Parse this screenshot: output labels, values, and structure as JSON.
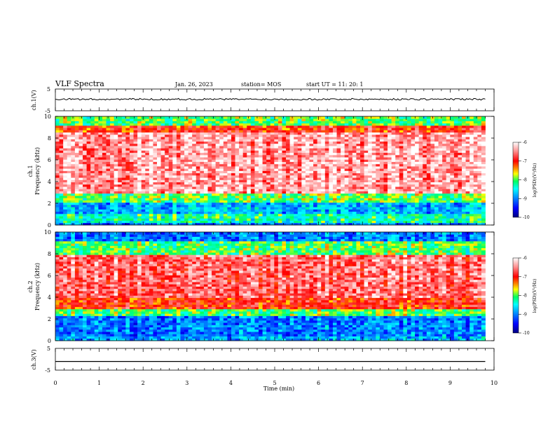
{
  "header": {
    "title": "VLF Spectra",
    "date": "Jan. 26, 2023",
    "station": "station= MOS",
    "start": "start  UT  =    11: 20: 1"
  },
  "colors": {
    "spectrum_low": "#000080",
    "spectrum_mid": "#00ff80",
    "spectrum_high": "#ff0000",
    "spectrum_top": "#ffffff",
    "trace": "#000000"
  },
  "chart_data": [
    {
      "type": "line",
      "id": "ch1-waveform",
      "ylabel": "ch.1(V)",
      "ylim": [
        -5,
        5
      ],
      "yticks": [
        "5",
        "-5"
      ],
      "xlim": [
        0,
        10
      ],
      "series": [
        {
          "x": [
            0,
            9.8
          ],
          "values": [
            0.3,
            0.3
          ],
          "note_noise": "±0.4"
        }
      ]
    },
    {
      "type": "heatmap",
      "id": "ch1-spectrogram",
      "ylabel": "ch.1\nFrequency (kHz)",
      "ylim": [
        0,
        10
      ],
      "yticks": [
        "0",
        "2",
        "4",
        "6",
        "8",
        "10"
      ],
      "xlim": [
        0,
        9.8
      ],
      "colorbar": {
        "label": "log(PSD)(V²/Hz)",
        "range": [
          -10,
          -6
        ],
        "ticks": [
          "-6",
          "-7",
          "-8",
          "-9",
          "-10"
        ]
      },
      "bands": [
        {
          "f": [
            0.0,
            0.3
          ],
          "level": -9.0
        },
        {
          "f": [
            0.3,
            1.0
          ],
          "level": -8.3
        },
        {
          "f": [
            1.0,
            2.0
          ],
          "level": -8.8
        },
        {
          "f": [
            2.0,
            3.0
          ],
          "level": -8.0
        },
        {
          "f": [
            3.0,
            8.5
          ],
          "level": -6.4
        },
        {
          "f": [
            8.5,
            9.2
          ],
          "level": -7.0
        },
        {
          "f": [
            9.2,
            10.0
          ],
          "level": -8.0
        }
      ]
    },
    {
      "type": "heatmap",
      "id": "ch2-spectrogram",
      "ylabel": "ch.2\nFrequency (kHz)",
      "ylim": [
        0,
        10
      ],
      "yticks": [
        "0",
        "2",
        "4",
        "6",
        "8",
        "10"
      ],
      "xlim": [
        0,
        9.8
      ],
      "colorbar": {
        "label": "log(PSD)(V²/Hz)",
        "range": [
          -10,
          -6
        ],
        "ticks": [
          "-6",
          "-7",
          "-8",
          "-9",
          "-10"
        ]
      },
      "bands": [
        {
          "f": [
            0.0,
            0.4
          ],
          "level": -8.8
        },
        {
          "f": [
            0.4,
            2.2
          ],
          "level": -9.0
        },
        {
          "f": [
            2.2,
            3.0
          ],
          "level": -8.0
        },
        {
          "f": [
            3.0,
            4.0
          ],
          "level": -7.0
        },
        {
          "f": [
            4.0,
            8.0
          ],
          "level": -6.6
        },
        {
          "f": [
            8.0,
            9.2
          ],
          "level": -8.0
        },
        {
          "f": [
            9.2,
            10.0
          ],
          "level": -9.0
        }
      ]
    },
    {
      "type": "line",
      "id": "ch3-waveform",
      "ylabel": "ch.3(V)",
      "ylim": [
        -5,
        5
      ],
      "yticks": [
        "5",
        "-5"
      ],
      "xlim": [
        0,
        10
      ],
      "xlabel": "Time  (min)",
      "xticks": [
        "0",
        "1",
        "2",
        "3",
        "4",
        "5",
        "6",
        "7",
        "8",
        "9",
        "10"
      ],
      "series": [
        {
          "x": [
            0,
            9.8
          ],
          "values": [
            -1.0,
            -1.0
          ]
        }
      ]
    }
  ]
}
